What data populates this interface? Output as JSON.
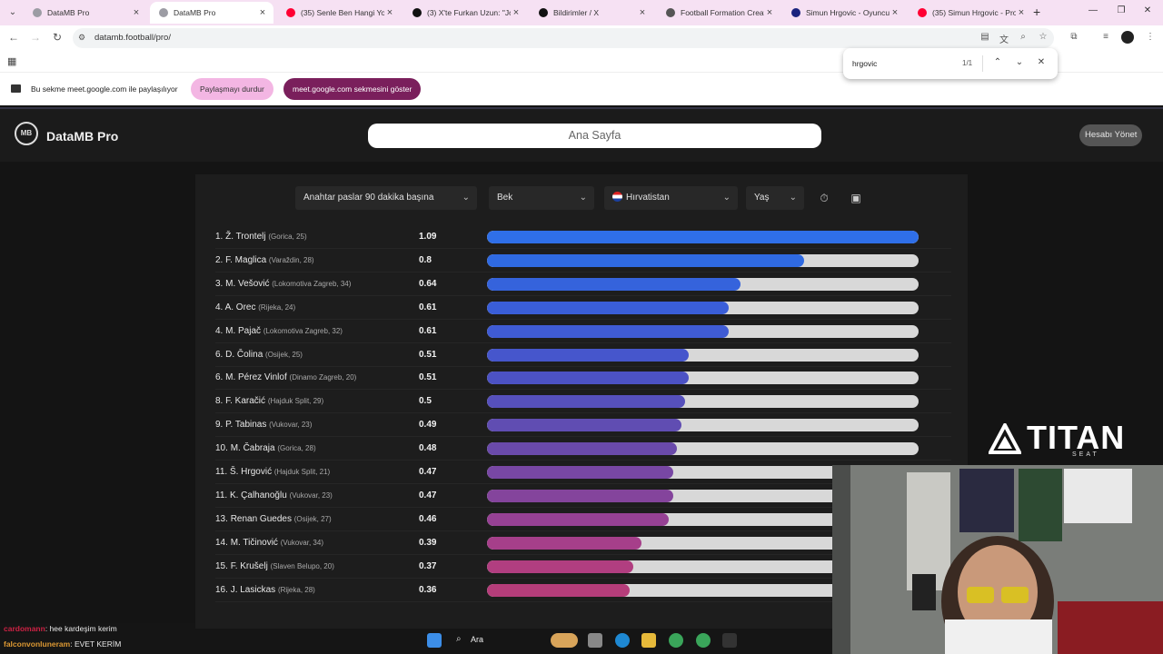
{
  "browser": {
    "tabs": [
      {
        "label": "DataMB Pro",
        "color": "#9c9ca4"
      },
      {
        "label": "DataMB Pro",
        "color": "#9c9ca4"
      },
      {
        "label": "(35) Senle Ben Hangi Yola",
        "color": "#ff0033"
      },
      {
        "label": "(3) X'te Furkan Uzun: \"Jo",
        "color": "#111111"
      },
      {
        "label": "Bildirimler / X",
        "color": "#111111"
      },
      {
        "label": "Football Formation Creat",
        "color": "#555555"
      },
      {
        "label": "Simun Hrgovic - Oyuncu",
        "color": "#1a237e"
      },
      {
        "label": "(35) Simun Hrgovic - Prof",
        "color": "#ff0033"
      }
    ],
    "url": "datamb.football/pro/",
    "share_text": "Bu sekme meet.google.com ile paylaşılıyor",
    "stop_sharing": "Paylaşmayı durdur",
    "show_tab": "meet.google.com sekmesini göster",
    "find": {
      "query": "hrgovic",
      "count": "1/1"
    }
  },
  "app": {
    "brand": "DataMB Pro",
    "search_label": "Ana Sayfa",
    "account_label": "Hesabı Yönet",
    "filters": {
      "metric": "Anahtar paslar 90 dakika başına",
      "position": "Bek",
      "country": "Hırvatistan",
      "age": "Yaş"
    }
  },
  "chart_data": {
    "type": "bar",
    "orientation": "horizontal",
    "players": [
      {
        "rank": "1.",
        "name": "Ž. Trontelj",
        "club": "(Gorica, 25)",
        "value": 1.09,
        "color": "#2f6fe8"
      },
      {
        "rank": "2.",
        "name": "F. Maglica",
        "club": "(Varaždin, 28)",
        "value": 0.8,
        "color": "#2f6ae2"
      },
      {
        "rank": "3.",
        "name": "M. Vešović",
        "club": "(Lokomotiva Zagreb, 34)",
        "value": 0.64,
        "color": "#3563dc"
      },
      {
        "rank": "4.",
        "name": "A. Orec",
        "club": "(Rijeka, 24)",
        "value": 0.61,
        "color": "#3a5ed8"
      },
      {
        "rank": "4.",
        "name": "M. Pajač",
        "club": "(Lokomotiva Zagreb, 32)",
        "value": 0.61,
        "color": "#3f5bd4"
      },
      {
        "rank": "6.",
        "name": "D. Čolina",
        "club": "(Osijek, 25)",
        "value": 0.51,
        "color": "#4656cc"
      },
      {
        "rank": "6.",
        "name": "M. Pérez Vinlof",
        "club": "(Dinamo Zagreb, 20)",
        "value": 0.51,
        "color": "#4c52c4"
      },
      {
        "rank": "8.",
        "name": "F. Karačić",
        "club": "(Hajduk Split, 29)",
        "value": 0.5,
        "color": "#5650bc"
      },
      {
        "rank": "9.",
        "name": "P. Tabinas",
        "club": "(Vukovar, 23)",
        "value": 0.49,
        "color": "#604db2"
      },
      {
        "rank": "10.",
        "name": "M. Čabraja",
        "club": "(Gorica, 28)",
        "value": 0.48,
        "color": "#6a4aaa"
      },
      {
        "rank": "11.",
        "name": "Š. Hrgović",
        "club": "(Hajduk Split, 21)",
        "value": 0.47,
        "color": "#7847a4"
      },
      {
        "rank": "11.",
        "name": "K. Çalhanoğlu",
        "club": "(Vukovar, 23)",
        "value": 0.47,
        "color": "#84449c"
      },
      {
        "rank": "13.",
        "name": "Renan Guedes",
        "club": "(Osijek, 27)",
        "value": 0.46,
        "color": "#964194"
      },
      {
        "rank": "14.",
        "name": "M. Tičinović",
        "club": "(Vukovar, 34)",
        "value": 0.39,
        "color": "#a63f8a"
      },
      {
        "rank": "15.",
        "name": "F. Krušelj",
        "club": "(Slaven Belupo, 20)",
        "value": 0.37,
        "color": "#b13e80"
      },
      {
        "rank": "16.",
        "name": "J. Lasickas",
        "club": "(Rijeka, 28)",
        "value": 0.36,
        "color": "#b53d7a"
      }
    ],
    "xlim": [
      0,
      1.09
    ]
  },
  "overlay": {
    "sponsor": "TITAN",
    "sponsor_sub": "SEAT",
    "chat": [
      {
        "user": "cardomann",
        "message": ": hee kardeşim kerim"
      },
      {
        "user": "falconvonluneram",
        "message": ": EVET KERİM"
      }
    ],
    "taskbar_search": "Ara"
  }
}
